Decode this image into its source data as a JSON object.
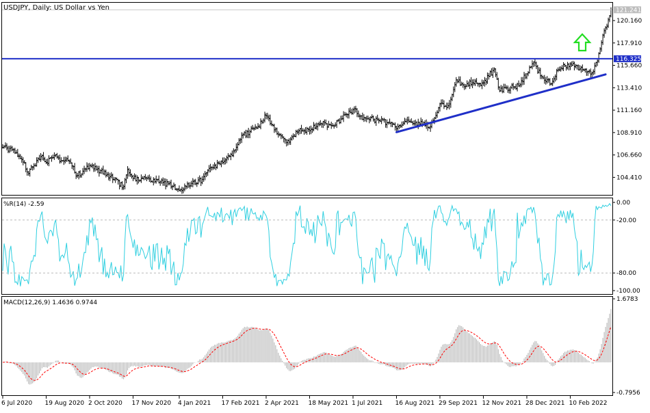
{
  "chart_data": [
    {
      "type": "ohlc",
      "title": "USDJPY, Daily:  US Dollar vs Yen",
      "symbol": "USDJPY",
      "timeframe": "Daily",
      "description": "US Dollar vs Yen",
      "y_ticks": [
        "120.160",
        "117.910",
        "115.660",
        "113.410",
        "111.160",
        "108.910",
        "106.660",
        "104.410"
      ],
      "ylim": [
        102.65,
        121.95
      ],
      "current_price_label": "121.241",
      "current_price": 121.241,
      "horizontal_level_label": "116.325",
      "horizontal_level": 116.325,
      "trendline": {
        "start": [
          "16 Aug 2021",
          108.95
        ],
        "end": [
          "20 Mar 2022",
          114.75
        ]
      },
      "annotation": "up-arrow",
      "x_tick_labels": [
        "6 Jul 2020",
        "19 Aug 2020",
        "2 Oct 2020",
        "17 Nov 2020",
        "4 Jan 2021",
        "17 Feb 2021",
        "2 Apr 2021",
        "18 May 2021",
        "1 Jul 2021",
        "16 Aug 2021",
        "29 Sep 2021",
        "12 Nov 2021",
        "28 Dec 2021",
        "10 Feb 2022"
      ],
      "price_anchors": [
        {
          "d": "6 Jul 2020",
          "v": 107.4
        },
        {
          "d": "15 Jul 2020",
          "v": 107.2
        },
        {
          "d": "24 Jul 2020",
          "v": 106.2
        },
        {
          "d": "31 Jul 2020",
          "v": 104.8
        },
        {
          "d": "6 Aug 2020",
          "v": 105.6
        },
        {
          "d": "14 Aug 2020",
          "v": 106.6
        },
        {
          "d": "19 Aug 2020",
          "v": 105.9
        },
        {
          "d": "27 Aug 2020",
          "v": 106.6
        },
        {
          "d": "2 Sep 2020",
          "v": 106.0
        },
        {
          "d": "10 Sep 2020",
          "v": 106.1
        },
        {
          "d": "21 Sep 2020",
          "v": 104.6
        },
        {
          "d": "2 Oct 2020",
          "v": 105.6
        },
        {
          "d": "21 Oct 2020",
          "v": 104.7
        },
        {
          "d": "6 Nov 2020",
          "v": 103.5
        },
        {
          "d": "11 Nov 2020",
          "v": 105.2
        },
        {
          "d": "17 Nov 2020",
          "v": 104.3
        },
        {
          "d": "10 Dec 2020",
          "v": 104.2
        },
        {
          "d": "28 Dec 2020",
          "v": 103.5
        },
        {
          "d": "4 Jan 2021",
          "v": 103.1
        },
        {
          "d": "15 Jan 2021",
          "v": 103.8
        },
        {
          "d": "27 Jan 2021",
          "v": 104.2
        },
        {
          "d": "5 Feb 2021",
          "v": 105.4
        },
        {
          "d": "17 Feb 2021",
          "v": 105.9
        },
        {
          "d": "26 Feb 2021",
          "v": 106.6
        },
        {
          "d": "10 Mar 2021",
          "v": 108.7
        },
        {
          "d": "17 Mar 2021",
          "v": 109.0
        },
        {
          "d": "25 Mar 2021",
          "v": 109.5
        },
        {
          "d": "2 Apr 2021",
          "v": 110.6
        },
        {
          "d": "15 Apr 2021",
          "v": 108.7
        },
        {
          "d": "23 Apr 2021",
          "v": 107.9
        },
        {
          "d": "6 May 2021",
          "v": 109.1
        },
        {
          "d": "18 May 2021",
          "v": 109.1
        },
        {
          "d": "28 May 2021",
          "v": 109.8
        },
        {
          "d": "10 Jun 2021",
          "v": 109.6
        },
        {
          "d": "21 Jun 2021",
          "v": 110.3
        },
        {
          "d": "1 Jul 2021",
          "v": 111.2
        },
        {
          "d": "13 Jul 2021",
          "v": 110.4
        },
        {
          "d": "22 Jul 2021",
          "v": 110.2
        },
        {
          "d": "5 Aug 2021",
          "v": 109.9
        },
        {
          "d": "16 Aug 2021",
          "v": 109.3
        },
        {
          "d": "25 Aug 2021",
          "v": 110.0
        },
        {
          "d": "2 Sep 2021",
          "v": 109.8
        },
        {
          "d": "13 Sep 2021",
          "v": 109.9
        },
        {
          "d": "20 Sep 2021",
          "v": 109.5
        },
        {
          "d": "29 Sep 2021",
          "v": 111.8
        },
        {
          "d": "7 Oct 2021",
          "v": 111.6
        },
        {
          "d": "15 Oct 2021",
          "v": 114.2
        },
        {
          "d": "22 Oct 2021",
          "v": 113.7
        },
        {
          "d": "2 Nov 2021",
          "v": 113.9
        },
        {
          "d": "12 Nov 2021",
          "v": 113.9
        },
        {
          "d": "24 Nov 2021",
          "v": 115.3
        },
        {
          "d": "30 Nov 2021",
          "v": 113.1
        },
        {
          "d": "10 Dec 2021",
          "v": 113.4
        },
        {
          "d": "20 Dec 2021",
          "v": 113.6
        },
        {
          "d": "28 Dec 2021",
          "v": 114.8
        },
        {
          "d": "4 Jan 2022",
          "v": 116.0
        },
        {
          "d": "12 Jan 2022",
          "v": 114.5
        },
        {
          "d": "21 Jan 2022",
          "v": 113.8
        },
        {
          "d": "28 Jan 2022",
          "v": 115.2
        },
        {
          "d": "10 Feb 2022",
          "v": 115.8
        },
        {
          "d": "24 Feb 2022",
          "v": 115.2
        },
        {
          "d": "4 Mar 2022",
          "v": 114.9
        },
        {
          "d": "10 Mar 2022",
          "v": 116.1
        },
        {
          "d": "16 Mar 2022",
          "v": 118.7
        },
        {
          "d": "21 Mar 2022",
          "v": 119.6
        },
        {
          "d": "24 Mar 2022",
          "v": 121.241
        }
      ]
    },
    {
      "type": "line",
      "indicator": "Williams %R",
      "label": "%R(14) -2.59",
      "y_ticks": [
        "0.00",
        "-20.00",
        "-80.00",
        "-100.00"
      ],
      "levels": [
        -20,
        -80
      ],
      "ylim": [
        -100,
        0
      ],
      "color": "#2ecfe0"
    },
    {
      "type": "histogram+line",
      "indicator": "MACD",
      "label": "MACD(12,26,9) 1.4636 0.9744",
      "y_ticks": [
        "1.6783",
        "-0.7956"
      ],
      "ylim": [
        -0.7956,
        1.6783
      ],
      "histogram_color": "#b0b0b0",
      "signal_color": "#ff0000"
    }
  ]
}
